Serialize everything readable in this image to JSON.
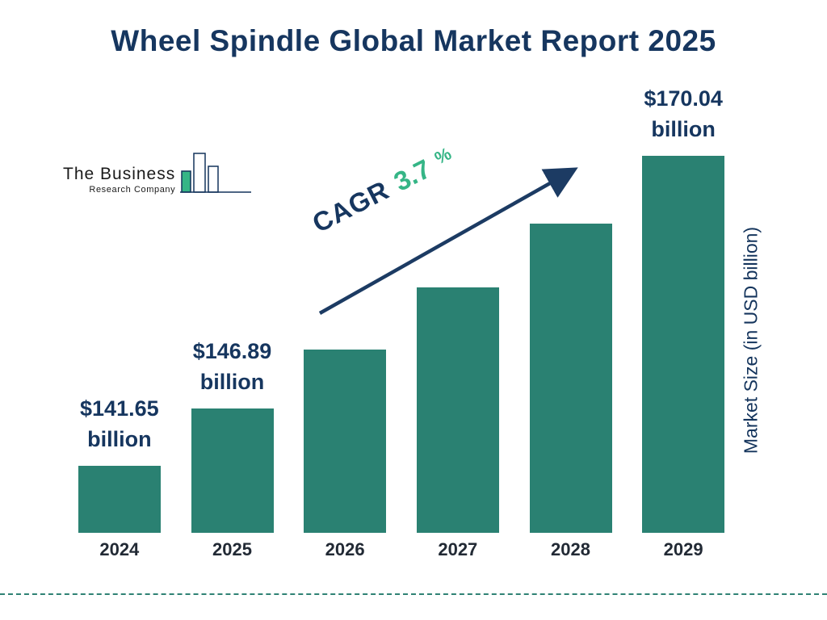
{
  "header": {
    "title": "Wheel Spindle Global Market Report 2025"
  },
  "logo": {
    "line1": "The Business",
    "line2": "Research Company"
  },
  "annotation": {
    "cagr_label": "CAGR",
    "cagr_value": "3.7",
    "percent_sign": "%"
  },
  "colors": {
    "bar": "#2a8172",
    "title_navy": "#16365f",
    "accent_green": "#35b586",
    "arrow_navy": "#1c3b63",
    "dash_teal": "#2f8274",
    "category_text": "#222a35"
  },
  "chart_data": {
    "type": "bar",
    "title": "Wheel Spindle Global Market Report 2025",
    "categories": [
      "2024",
      "2025",
      "2026",
      "2027",
      "2028",
      "2029"
    ],
    "values": [
      141.65,
      146.89,
      152.32,
      157.96,
      163.8,
      170.04
    ],
    "value_labels": [
      {
        "index": 0,
        "lines": [
          "$141.65",
          "billion"
        ]
      },
      {
        "index": 1,
        "lines": [
          "$146.89",
          "billion"
        ]
      },
      {
        "index": 5,
        "lines": [
          "$170.04",
          "billion"
        ]
      }
    ],
    "cagr": "3.7%",
    "xlabel": "",
    "ylabel": "Market Size (in USD billion)",
    "ylim": [
      135.5,
      171
    ],
    "grid": false,
    "legend": false
  }
}
